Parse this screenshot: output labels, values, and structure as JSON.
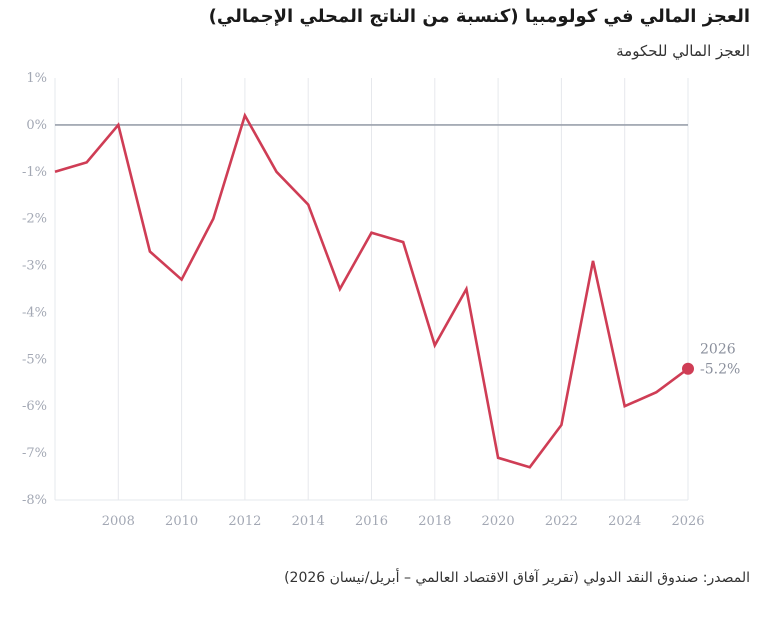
{
  "chart_data": {
    "type": "line",
    "title": "العجز المالي في كولومبيا (كنسبة من الناتج المحلي الإجمالي)",
    "subtitle": "العجز المالي للحكومة",
    "source": "المصدر: صندوق النقد الدولي (تقرير آفاق الاقتصاد العالمي – أبريل/نيسان 2026)",
    "xlabel": "",
    "ylabel": "",
    "xlim": [
      2006,
      2026
    ],
    "ylim": [
      -8,
      1
    ],
    "x_ticks": [
      2008,
      2010,
      2012,
      2014,
      2016,
      2018,
      2020,
      2022,
      2024,
      2026
    ],
    "y_ticks": [
      1,
      0,
      -1,
      -2,
      -3,
      -4,
      -5,
      -6,
      -7,
      -8
    ],
    "y_tick_labels": [
      "1%",
      "0%",
      "-1%",
      "-2%",
      "-3%",
      "-4%",
      "-5%",
      "-6%",
      "-7%",
      "-8%"
    ],
    "grid": "vertical",
    "colors": {
      "line": "#cf3d55",
      "zero_line": "#9aa0ac",
      "grid": "#e6e8ec"
    },
    "series": [
      {
        "x": [
          2006,
          2007,
          2008,
          2009,
          2010,
          2011,
          2012,
          2013,
          2014,
          2015,
          2016,
          2017,
          2018,
          2019,
          2020,
          2021,
          2022,
          2023,
          2024,
          2025,
          2026
        ],
        "values": [
          -1.0,
          -0.8,
          0.0,
          -2.7,
          -3.3,
          -2.0,
          0.2,
          -1.0,
          -1.7,
          -3.5,
          -2.3,
          -2.5,
          -4.7,
          -3.5,
          -7.1,
          -7.3,
          -6.4,
          -2.9,
          -6.0,
          -5.7,
          -5.2
        ]
      }
    ],
    "annotation": {
      "year": "2026",
      "value": "-5.2%"
    }
  }
}
